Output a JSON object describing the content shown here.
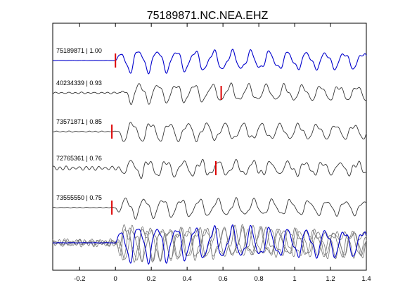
{
  "chart_data": {
    "type": "line",
    "title": "75189871.NC.NEA.EHZ",
    "xlabel": "",
    "ylabel": "",
    "xlim": [
      -0.35,
      1.4
    ],
    "xticks": [
      -0.2,
      0,
      0.2,
      0.4,
      0.6,
      0.8,
      1.0,
      1.2,
      1.4
    ],
    "xtick_labels": [
      "-0.2",
      "0",
      "0.2",
      "0.4",
      "0.6",
      "0.8",
      "1",
      "1.2",
      "1.4"
    ],
    "grid": false,
    "colors": {
      "reference": "#0000cc",
      "trace": "#333333",
      "stack": "#777777",
      "pick": "#dd0000"
    },
    "traces": [
      {
        "label": "75189871 | 1.00",
        "pick_time": 0.0,
        "color": "#0000cc",
        "reference": true
      },
      {
        "label": "40234339 | 0.93",
        "pick_time": 0.59,
        "color": "#333333"
      },
      {
        "label": "73571871 | 0.85",
        "pick_time": -0.02,
        "color": "#333333"
      },
      {
        "label": "72765361 | 0.76",
        "pick_time": 0.56,
        "color": "#333333"
      },
      {
        "label": "73555550 | 0.75",
        "pick_time": -0.02,
        "color": "#333333"
      }
    ]
  }
}
